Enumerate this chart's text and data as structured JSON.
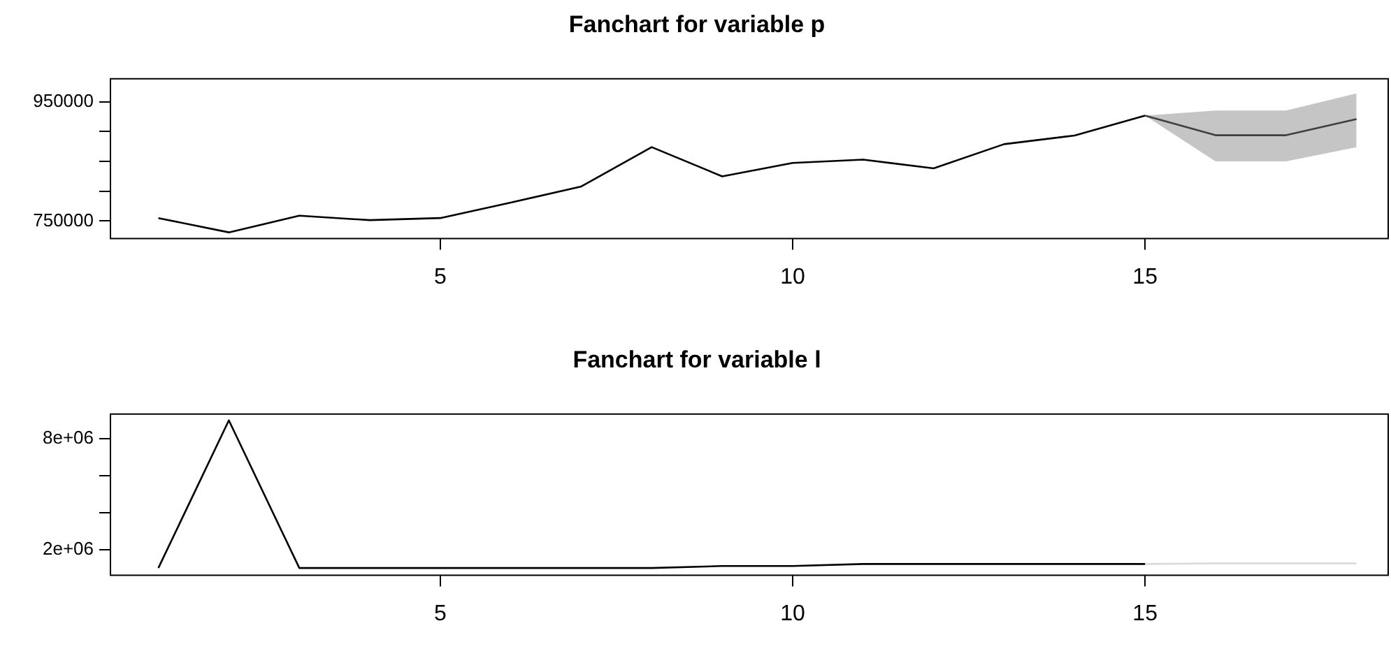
{
  "chart_data": [
    {
      "type": "line",
      "title": "Fanchart for variable p",
      "xlim": [
        0.32,
        18.45
      ],
      "xticks": [
        5,
        10,
        15
      ],
      "ylim": [
        720500,
        988700
      ],
      "yticks": [
        750000,
        {
          "value": 800000,
          "label": null
        },
        {
          "value": 850000,
          "label": null
        },
        {
          "value": 900000,
          "label": null
        },
        950000
      ],
      "grid": false,
      "legend": false,
      "marker": "none",
      "line_style": "solid",
      "series": [
        {
          "color": "#000000",
          "x": [
            1,
            2,
            3,
            4,
            5,
            6,
            7,
            8,
            9,
            10,
            11,
            12,
            13,
            14,
            15
          ],
          "values": [
            755000,
            731000,
            759000,
            751500,
            755000,
            781000,
            808000,
            874000,
            825000,
            847500,
            853000,
            838500,
            879000,
            893500,
            927000
          ]
        },
        {
          "color": "#404040",
          "x": [
            15,
            16,
            17,
            18
          ],
          "values": [
            927000,
            894000,
            894000,
            921000
          ],
          "lower": [
            927000,
            850000,
            850000,
            874000
          ],
          "upper": [
            927000,
            935500,
            935500,
            964000
          ]
        }
      ]
    },
    {
      "type": "line",
      "title": "Fanchart for variable l",
      "xlim": [
        0.32,
        18.45
      ],
      "xticks": [
        5,
        10,
        15
      ],
      "ylim": [
        605000,
        9340000
      ],
      "yticks": [
        {
          "value": 2000000,
          "label": "2e+06"
        },
        {
          "value": 4000000,
          "label": null
        },
        {
          "value": 6000000,
          "label": null
        },
        {
          "value": 8000000,
          "label": "8e+06"
        }
      ],
      "grid": false,
      "legend": false,
      "marker": "none",
      "line_style": "solid",
      "series": [
        {
          "color": "#000000",
          "x": [
            1,
            2,
            3,
            4,
            5,
            6,
            7,
            8,
            9,
            10,
            11,
            12,
            13,
            14,
            15
          ],
          "values": [
            1000000,
            9000000,
            1000000,
            1000000,
            1000000,
            1000000,
            1000000,
            1000000,
            1110000,
            1110000,
            1220000,
            1220000,
            1220000,
            1220000,
            1220000
          ]
        },
        {
          "color": "#d9d9d9",
          "x": [
            15,
            16,
            17,
            18
          ],
          "values": [
            1220000,
            1250000,
            1250000,
            1250000
          ]
        }
      ]
    }
  ]
}
